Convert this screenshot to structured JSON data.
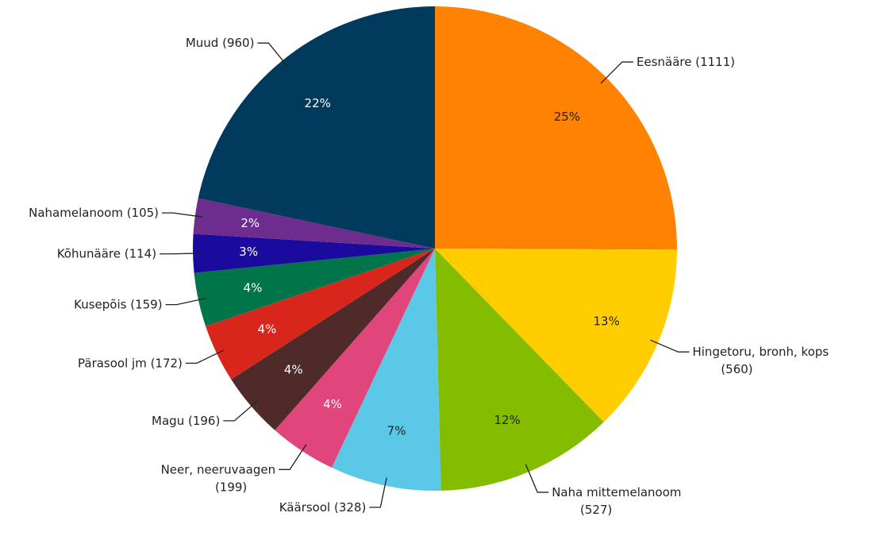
{
  "chart_data": {
    "type": "pie",
    "categories": [
      "Eesnääre (1111)",
      "Hingetoru, bronh, kops\n(560)",
      "Naha mittemelanoom\n(527)",
      "Käärsool (328)",
      "Neer, neeruvaagen\n(199)",
      "Magu (196)",
      "Pärasool jm (172)",
      "Kusepõis (159)",
      "Kõhunääre (114)",
      "Nahamelanoom (105)",
      "Muud (960)"
    ],
    "values": [
      1111,
      560,
      527,
      328,
      199,
      196,
      172,
      159,
      114,
      105,
      960
    ],
    "percent_labels": [
      "25%",
      "13%",
      "12%",
      "7%",
      "4%",
      "4%",
      "4%",
      "4%",
      "3%",
      "2%",
      "22%"
    ],
    "colors": [
      "#ff8200",
      "#ffcd00",
      "#84bd00",
      "#5bc8e8",
      "#e0457b",
      "#4e2a2a",
      "#d9261c",
      "#00754a",
      "#1a0a9e",
      "#6e2c8e",
      "#003a5c"
    ]
  }
}
